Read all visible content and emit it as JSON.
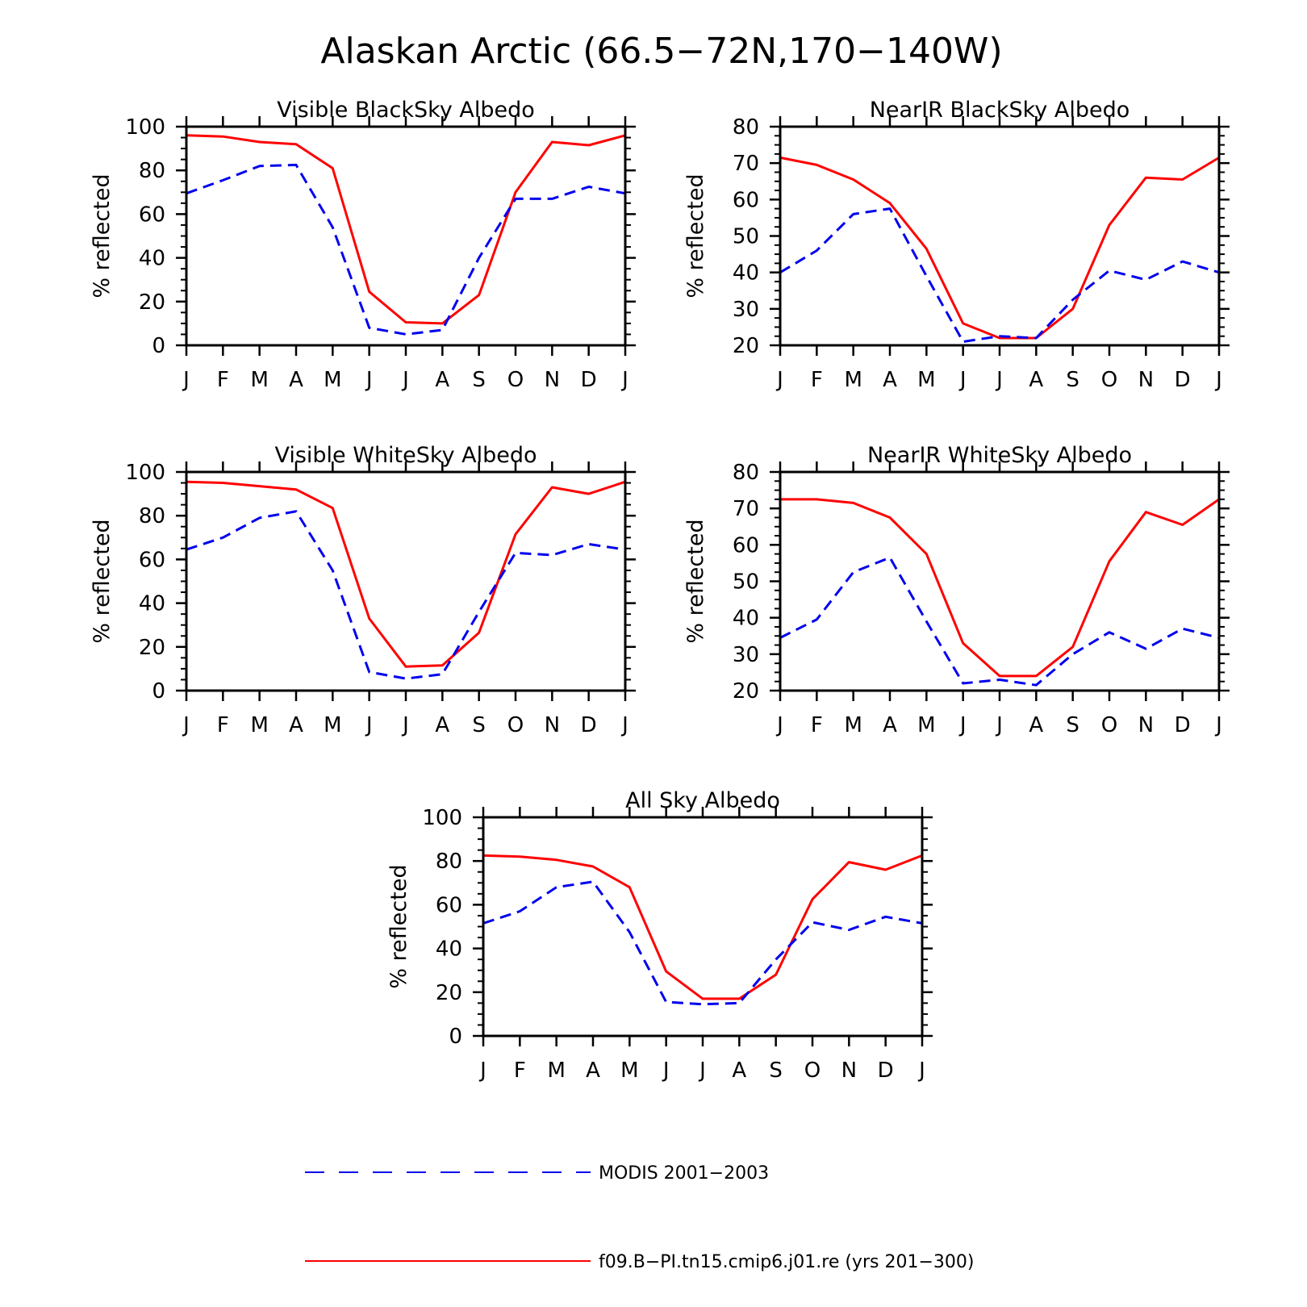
{
  "title": "Alaskan Arctic (66.5−72N,170−140W)",
  "colors": {
    "model": "#ff0000",
    "modis": "#0000ee",
    "axis": "#000000"
  },
  "legend": {
    "placement": "bottom-left",
    "entries": [
      {
        "series": "modis",
        "label": "MODIS 2001−2003",
        "style": "dashed"
      },
      {
        "series": "model",
        "label": "f09.B−PI.tn15.cmip6.j01.re (yrs 201−300)",
        "style": "solid"
      }
    ]
  },
  "chart_data": [
    {
      "type": "line",
      "title": "Visible BlackSky Albedo",
      "ylabel": "% reflected",
      "categories": [
        "J",
        "F",
        "M",
        "A",
        "M",
        "J",
        "J",
        "A",
        "S",
        "O",
        "N",
        "D",
        "J"
      ],
      "ylim": [
        0,
        100
      ],
      "yticks": [
        0,
        20,
        40,
        60,
        80,
        100
      ],
      "series": [
        {
          "key": "model",
          "values": [
            96,
            95.5,
            93,
            92,
            81,
            24.5,
            10.5,
            10,
            23,
            70,
            93,
            91.5,
            96
          ]
        },
        {
          "key": "modis",
          "values": [
            69.5,
            75.5,
            82,
            82.5,
            54,
            8,
            5,
            7,
            40,
            67,
            67,
            72.5,
            69.5
          ]
        }
      ]
    },
    {
      "type": "line",
      "title": "NearIR BlackSky Albedo",
      "ylabel": "% reflected",
      "categories": [
        "J",
        "F",
        "M",
        "A",
        "M",
        "J",
        "J",
        "A",
        "S",
        "O",
        "N",
        "D",
        "J"
      ],
      "ylim": [
        20,
        80
      ],
      "yticks": [
        20,
        30,
        40,
        50,
        60,
        70,
        80
      ],
      "series": [
        {
          "key": "model",
          "values": [
            71.5,
            69.5,
            65.5,
            59,
            46.5,
            26,
            22,
            22,
            30,
            53,
            66,
            65.5,
            71.5
          ]
        },
        {
          "key": "modis",
          "values": [
            40,
            46,
            56,
            57.5,
            39,
            21,
            22.5,
            22,
            32.5,
            40.5,
            38,
            43,
            40
          ]
        }
      ]
    },
    {
      "type": "line",
      "title": "Visible WhiteSky Albedo",
      "ylabel": "% reflected",
      "categories": [
        "J",
        "F",
        "M",
        "A",
        "M",
        "J",
        "J",
        "A",
        "S",
        "O",
        "N",
        "D",
        "J"
      ],
      "ylim": [
        0,
        100
      ],
      "yticks": [
        0,
        20,
        40,
        60,
        80,
        100
      ],
      "series": [
        {
          "key": "model",
          "values": [
            95.5,
            95,
            93.5,
            92,
            83.5,
            33,
            11,
            11.5,
            26.5,
            71.5,
            93,
            90,
            95.5
          ]
        },
        {
          "key": "modis",
          "values": [
            64.5,
            70,
            79,
            82,
            55,
            8.5,
            5.5,
            7.5,
            36,
            63,
            62,
            67,
            64.5
          ]
        }
      ]
    },
    {
      "type": "line",
      "title": "NearIR WhiteSky Albedo",
      "ylabel": "% reflected",
      "categories": [
        "J",
        "F",
        "M",
        "A",
        "M",
        "J",
        "J",
        "A",
        "S",
        "O",
        "N",
        "D",
        "J"
      ],
      "ylim": [
        20,
        80
      ],
      "yticks": [
        20,
        30,
        40,
        50,
        60,
        70,
        80
      ],
      "series": [
        {
          "key": "model",
          "values": [
            72.5,
            72.5,
            71.5,
            67.5,
            57.5,
            33,
            24,
            24,
            32,
            55.5,
            69,
            65.5,
            72.5
          ]
        },
        {
          "key": "modis",
          "values": [
            34.5,
            39.5,
            52.5,
            56.5,
            39,
            22,
            23,
            21.5,
            30,
            36,
            31.5,
            37,
            34.5
          ]
        }
      ]
    },
    {
      "type": "line",
      "title": "All Sky Albedo",
      "ylabel": "% reflected",
      "categories": [
        "J",
        "F",
        "M",
        "A",
        "M",
        "J",
        "J",
        "A",
        "S",
        "O",
        "N",
        "D",
        "J"
      ],
      "ylim": [
        0,
        100
      ],
      "yticks": [
        0,
        20,
        40,
        60,
        80,
        100
      ],
      "series": [
        {
          "key": "model",
          "values": [
            82.5,
            82,
            80.5,
            77.5,
            68,
            29.5,
            17,
            17,
            28,
            62.5,
            79.5,
            76,
            82.5
          ]
        },
        {
          "key": "modis",
          "values": [
            51.5,
            57,
            68,
            70.5,
            47.5,
            15.5,
            14.5,
            15,
            35,
            52,
            48.5,
            54.5,
            51.5
          ]
        }
      ]
    }
  ]
}
